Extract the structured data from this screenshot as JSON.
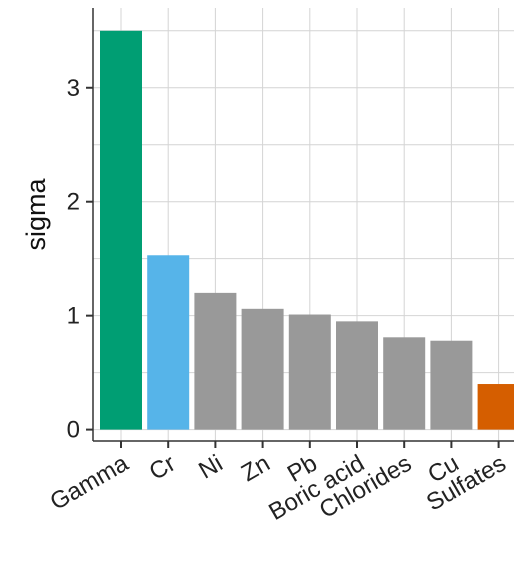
{
  "chart_data": {
    "type": "bar",
    "title": "",
    "xlabel": "",
    "ylabel": "sigma",
    "categories": [
      "Gamma",
      "Cr",
      "Ni",
      "Zn",
      "Pb",
      "Boric acid",
      "Chlorides",
      "Cu",
      "Sulfates"
    ],
    "values": [
      3.5,
      1.53,
      1.2,
      1.06,
      1.01,
      0.95,
      0.81,
      0.78,
      0.4
    ],
    "colors": [
      "#009E73",
      "#56B4E9",
      "#999999",
      "#999999",
      "#999999",
      "#999999",
      "#999999",
      "#999999",
      "#D55E00"
    ],
    "ylim": [
      -0.1,
      3.7
    ],
    "yticks": [
      0,
      1,
      2,
      3
    ],
    "grid": true,
    "legend": "none",
    "x_label_rotation": -30
  }
}
